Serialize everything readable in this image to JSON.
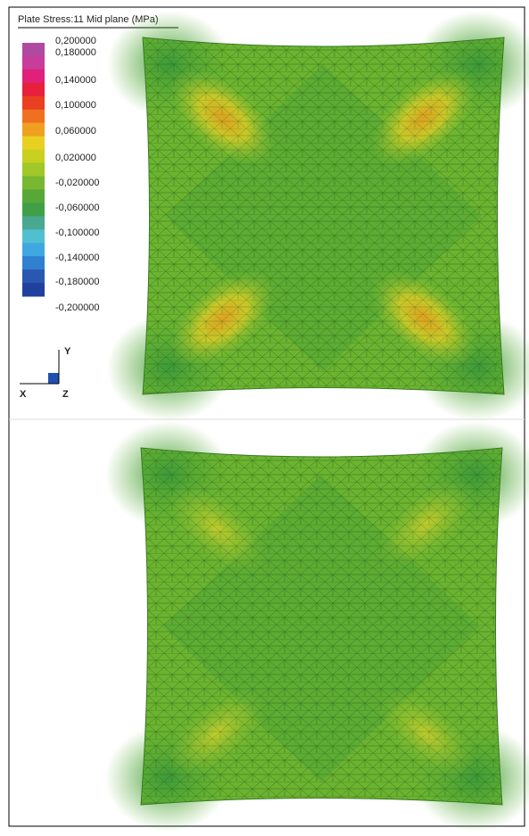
{
  "legend": {
    "title": "Plate Stress:11 Mid plane (MPa)",
    "labels": [
      "0,200000",
      "0,180000",
      "0,140000",
      "0,100000",
      "0,060000",
      "0,020000",
      "-0,020000",
      "-0,060000",
      "-0,100000",
      "-0,140000",
      "-0,180000",
      "-0,200000"
    ]
  },
  "axes": {
    "x": "X",
    "y": "Y",
    "z": "Z"
  }
}
